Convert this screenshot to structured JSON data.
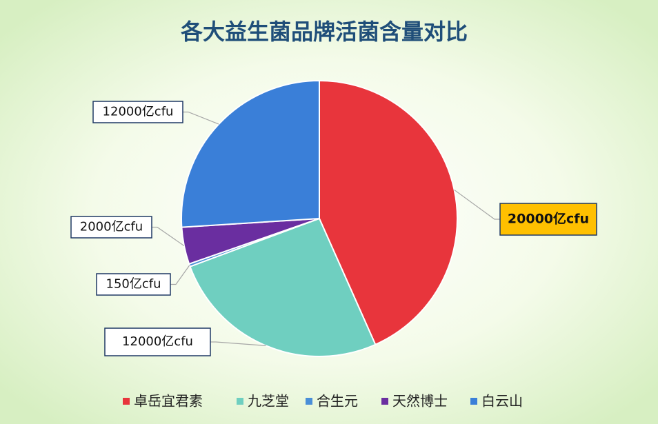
{
  "chart_data": {
    "type": "pie",
    "title": "各大益生菌品牌活菌含量对比",
    "categories": [
      "卓岳宜君素",
      "九芝堂",
      "合生元",
      "天然博士",
      "白云山"
    ],
    "values": [
      20000,
      12000,
      150,
      2000,
      12000
    ],
    "value_labels": [
      "20000亿cfu",
      "12000亿cfu",
      "150亿cfu",
      "2000亿cfu",
      "12000亿cfu"
    ],
    "colors": [
      "#e8353c",
      "#6fcfc0",
      "#4a8fd8",
      "#6a2ea0",
      "#3a7fd8"
    ]
  }
}
